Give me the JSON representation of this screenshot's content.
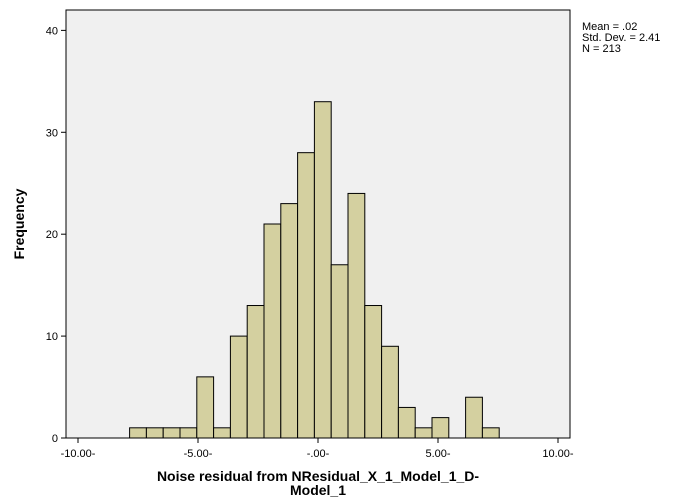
{
  "chart_data": {
    "type": "bar",
    "subtype": "histogram",
    "xlabel": "Noise residual from NResidual_X_1_Model_1_D-Model_1",
    "ylabel": "Frequency",
    "xlim": [
      -10.5,
      10.5
    ],
    "ylim": [
      0,
      42
    ],
    "x_ticks": [
      -10,
      -5,
      0,
      5,
      10
    ],
    "x_tick_labels": [
      "-10.00-",
      "-5.00-",
      "-.00-",
      "5.00-",
      "10.00-"
    ],
    "y_ticks": [
      0,
      10,
      20,
      30,
      40
    ],
    "y_tick_labels": [
      "0",
      "10",
      "20",
      "30",
      "40"
    ],
    "bin_width": 0.7,
    "bins_start": [
      -7.85,
      -7.15,
      -6.45,
      -5.75,
      -5.05,
      -4.35,
      -3.65,
      -2.95,
      -2.25,
      -1.55,
      -0.85,
      -0.15,
      0.55,
      1.25,
      1.95,
      2.65,
      3.35,
      4.05,
      4.75,
      5.45,
      6.15,
      6.85
    ],
    "values": [
      1,
      1,
      1,
      1,
      6,
      1,
      10,
      13,
      21,
      23,
      28,
      33,
      17,
      24,
      13,
      9,
      3,
      1,
      2,
      0,
      4,
      1
    ],
    "bar_color": "#d4d0a0",
    "bar_edge_color": "#000000",
    "plot_background": "#f0f0f0",
    "grid": false
  },
  "stats": {
    "mean": "Mean = .02",
    "std_dev": "Std. Dev. = 2.41",
    "n": "N = 213"
  }
}
